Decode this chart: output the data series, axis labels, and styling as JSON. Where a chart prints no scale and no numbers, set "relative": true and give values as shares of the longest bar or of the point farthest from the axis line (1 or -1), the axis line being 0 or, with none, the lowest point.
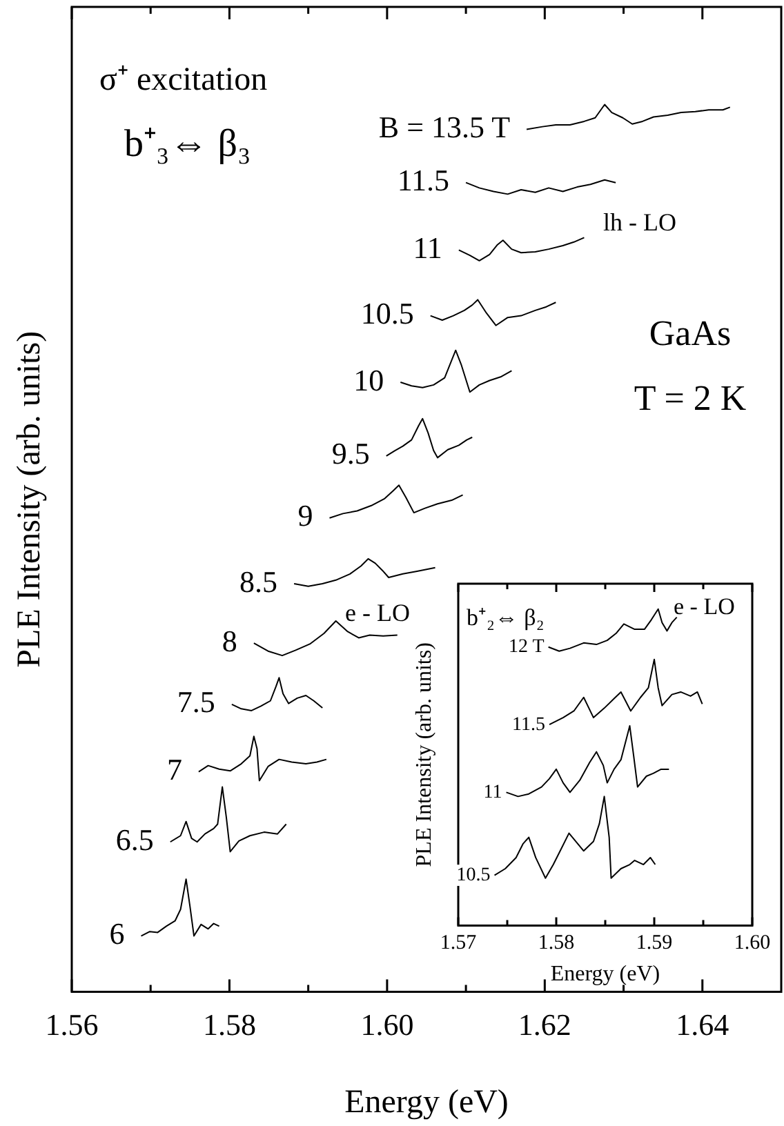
{
  "chart_data": [
    {
      "type": "line",
      "relative": true,
      "xlabel": "Energy (eV)",
      "ylabel": "PLE Intensity (arb. units)",
      "xlim": [
        1.56,
        1.65
      ],
      "xticks": [
        1.56,
        {
          "value": 1.57,
          "label": null
        },
        1.58,
        {
          "value": 1.59,
          "label": null
        },
        {
          "value": 1.6,
          "label": "1.60"
        },
        {
          "value": 1.61,
          "label": null
        },
        1.62,
        {
          "value": 1.63,
          "label": null
        },
        1.64
      ],
      "annotations": [
        "σ⁺ excitation",
        "b⁺₃⇔ β₃",
        "GaAs",
        "T = 2 K",
        "lh - LO",
        "e - LO"
      ],
      "series": [
        {
          "name": "B = 13.5 T",
          "color": "#000000",
          "x": [
            1.6177,
            1.6197,
            1.6214,
            1.6232,
            1.625,
            1.6264,
            1.6276,
            1.6285,
            1.6299,
            1.6311,
            1.6324,
            1.6338,
            1.6356,
            1.6373,
            1.6391,
            1.6408,
            1.6426,
            1.6435
          ],
          "values": [
            0.972,
            0.975,
            0.977,
            0.977,
            0.981,
            0.985,
            1.0,
            0.991,
            0.985,
            0.978,
            0.981,
            0.986,
            0.988,
            0.991,
            0.992,
            0.994,
            0.994,
            0.997
          ]
        },
        {
          "name": "11.5",
          "color": "#000000",
          "x": [
            1.61,
            1.6117,
            1.6135,
            1.6153,
            1.617,
            1.6188,
            1.6205,
            1.6223,
            1.6241,
            1.6258,
            1.6276,
            1.629
          ],
          "values": [
            0.912,
            0.906,
            0.902,
            0.899,
            0.904,
            0.901,
            0.906,
            0.902,
            0.907,
            0.91,
            0.915,
            0.912
          ]
        },
        {
          "name": "11",
          "color": "#000000",
          "x": [
            1.6091,
            1.6105,
            1.6117,
            1.613,
            1.614,
            1.6147,
            1.6158,
            1.617,
            1.6188,
            1.6205,
            1.6223,
            1.6237,
            1.625
          ],
          "values": [
            0.836,
            0.83,
            0.824,
            0.831,
            0.842,
            0.847,
            0.837,
            0.833,
            0.834,
            0.837,
            0.841,
            0.845,
            0.85
          ]
        },
        {
          "name": "10.5",
          "color": "#000000",
          "x": [
            1.6055,
            1.607,
            1.6084,
            1.6098,
            1.6108,
            1.6115,
            1.6126,
            1.6138,
            1.6153,
            1.617,
            1.6188,
            1.6202,
            1.6214
          ],
          "values": [
            0.762,
            0.757,
            0.762,
            0.768,
            0.774,
            0.78,
            0.765,
            0.751,
            0.76,
            0.762,
            0.768,
            0.772,
            0.777
          ]
        },
        {
          "name": "10",
          "color": "#000000",
          "x": [
            1.6017,
            1.6031,
            1.6045,
            1.6059,
            1.6073,
            1.6082,
            1.6087,
            1.6094,
            1.6105,
            1.6117,
            1.613,
            1.6144,
            1.6158
          ],
          "values": [
            0.687,
            0.683,
            0.681,
            0.684,
            0.692,
            0.712,
            0.723,
            0.707,
            0.676,
            0.684,
            0.689,
            0.693,
            0.7
          ]
        },
        {
          "name": "9.5",
          "color": "#000000",
          "x": [
            1.5999,
            1.601,
            1.602,
            1.6031,
            1.604,
            1.6045,
            1.6052,
            1.6059,
            1.6064,
            1.6077,
            1.6091,
            1.6101,
            1.6108
          ],
          "values": [
            0.604,
            0.61,
            0.615,
            0.622,
            0.638,
            0.646,
            0.63,
            0.61,
            0.602,
            0.611,
            0.616,
            0.622,
            0.625
          ]
        },
        {
          "name": "9",
          "color": "#000000",
          "x": [
            1.5927,
            1.5944,
            1.5962,
            1.598,
            1.5997,
            1.6008,
            1.6015,
            1.6024,
            1.6034,
            1.6048,
            1.6064,
            1.6082,
            1.6096
          ],
          "values": [
            0.534,
            0.539,
            0.542,
            0.548,
            0.556,
            0.565,
            0.571,
            0.557,
            0.54,
            0.545,
            0.55,
            0.554,
            0.56
          ]
        },
        {
          "name": "8.5",
          "color": "#000000",
          "x": [
            1.5882,
            1.59,
            1.5918,
            1.5935,
            1.5953,
            1.5967,
            1.5976,
            1.5985,
            1.5994,
            1.6002,
            1.602,
            1.6038,
            1.6061
          ],
          "values": [
            0.46,
            0.457,
            0.46,
            0.464,
            0.471,
            0.48,
            0.488,
            0.483,
            0.475,
            0.467,
            0.471,
            0.474,
            0.478
          ]
        },
        {
          "name": "8",
          "color": "#000000",
          "x": [
            1.5831,
            1.5849,
            1.5867,
            1.5884,
            1.5902,
            1.592,
            1.5935,
            1.595,
            1.5964,
            1.5978,
            1.5995,
            1.6013
          ],
          "values": [
            0.393,
            0.384,
            0.379,
            0.385,
            0.392,
            0.404,
            0.418,
            0.406,
            0.399,
            0.402,
            0.401,
            0.402
          ]
        },
        {
          "name": "7.5",
          "color": "#000000",
          "x": [
            1.5803,
            1.5815,
            1.5828,
            1.584,
            1.5852,
            1.5859,
            1.5863,
            1.5868,
            1.5875,
            1.5886,
            1.5897,
            1.5907,
            1.5918
          ],
          "values": [
            0.324,
            0.319,
            0.317,
            0.322,
            0.328,
            0.344,
            0.354,
            0.336,
            0.325,
            0.331,
            0.334,
            0.328,
            0.32
          ]
        },
        {
          "name": "7",
          "color": "#000000",
          "x": [
            1.5761,
            1.5773,
            1.5787,
            1.5801,
            1.5815,
            1.5826,
            1.5831,
            1.5835,
            1.5838,
            1.5849,
            1.5863,
            1.5879,
            1.5897,
            1.5911,
            1.5923
          ],
          "values": [
            0.248,
            0.255,
            0.251,
            0.249,
            0.257,
            0.266,
            0.288,
            0.274,
            0.238,
            0.254,
            0.262,
            0.259,
            0.257,
            0.259,
            0.262
          ]
        },
        {
          "name": "6.5",
          "color": "#000000",
          "x": [
            1.5725,
            1.5738,
            1.5745,
            1.5752,
            1.5759,
            1.5769,
            1.578,
            1.5785,
            1.5791,
            1.5796,
            1.5801,
            1.5812,
            1.5826,
            1.5844,
            1.5861,
            1.5872
          ],
          "values": [
            0.169,
            0.176,
            0.192,
            0.173,
            0.169,
            0.178,
            0.184,
            0.189,
            0.231,
            0.197,
            0.158,
            0.17,
            0.176,
            0.18,
            0.178,
            0.189
          ]
        },
        {
          "name": "6",
          "color": "#000000",
          "x": [
            1.5688,
            1.5699,
            1.5709,
            1.572,
            1.5731,
            1.5738,
            1.5745,
            1.575,
            1.5755,
            1.5764,
            1.5773,
            1.578,
            1.5787
          ],
          "values": [
            0.063,
            0.068,
            0.067,
            0.074,
            0.08,
            0.093,
            0.127,
            0.096,
            0.063,
            0.076,
            0.071,
            0.077,
            0.074
          ]
        }
      ]
    },
    {
      "type": "line",
      "relative": true,
      "xlabel": "Energy (eV)",
      "ylabel": "PLE Intensity (arb. units)",
      "xlim": [
        1.57,
        1.6
      ],
      "xticks": [
        1.57,
        {
          "value": 1.575,
          "label": null
        },
        1.58,
        {
          "value": 1.585,
          "label": null
        },
        1.59,
        {
          "value": 1.595,
          "label": null
        },
        {
          "value": 1.6,
          "label": "1.60"
        }
      ],
      "annotations": [
        "b⁺₂⇔ β₂",
        "e - LO"
      ],
      "series": [
        {
          "name": "12 T",
          "color": "#000000",
          "x": [
            1.5792,
            1.5803,
            1.5814,
            1.5828,
            1.5841,
            1.5852,
            1.5861,
            1.5869,
            1.588,
            1.589,
            1.5897,
            1.5904,
            1.5908,
            1.5913,
            1.5918,
            1.5923
          ],
          "values": [
            0.88,
            0.867,
            0.876,
            0.893,
            0.888,
            0.901,
            0.923,
            0.953,
            0.936,
            0.936,
            0.966,
            1.0,
            0.957,
            0.931,
            0.957,
            0.974
          ]
        },
        {
          "name": "11.5",
          "color": "#000000",
          "x": [
            1.5793,
            1.5807,
            1.5818,
            1.5828,
            1.5838,
            1.5849,
            1.5859,
            1.5866,
            1.5876,
            1.5886,
            1.5894,
            1.59,
            1.5904,
            1.5908,
            1.5918,
            1.5927,
            1.5937,
            1.5944,
            1.5949
          ],
          "values": [
            0.635,
            0.657,
            0.678,
            0.721,
            0.657,
            0.687,
            0.717,
            0.738,
            0.678,
            0.721,
            0.751,
            0.841,
            0.751,
            0.695,
            0.73,
            0.738,
            0.725,
            0.738,
            0.7
          ]
        },
        {
          "name": "11",
          "color": "#000000",
          "x": [
            1.5749,
            1.5761,
            1.5772,
            1.5785,
            1.5793,
            1.58,
            1.5807,
            1.5814,
            1.5824,
            1.5834,
            1.5841,
            1.5848,
            1.5852,
            1.5859,
            1.5866,
            1.5875,
            1.5879,
            1.5883,
            1.5892,
            1.5899,
            1.5907,
            1.5915
          ],
          "values": [
            0.421,
            0.408,
            0.416,
            0.438,
            0.464,
            0.494,
            0.451,
            0.421,
            0.459,
            0.515,
            0.549,
            0.506,
            0.451,
            0.494,
            0.524,
            0.631,
            0.536,
            0.438,
            0.472,
            0.481,
            0.494,
            0.494
          ]
        },
        {
          "name": "10.5",
          "color": "#000000",
          "x": [
            1.5737,
            1.5748,
            1.5759,
            1.5766,
            1.5772,
            1.5779,
            1.5789,
            1.5797,
            1.5804,
            1.5813,
            1.582,
            1.5828,
            1.5838,
            1.5844,
            1.5849,
            1.5854,
            1.5856,
            1.5866,
            1.5875,
            1.588,
            1.5889,
            1.5896,
            1.5901
          ],
          "values": [
            0.159,
            0.18,
            0.215,
            0.258,
            0.279,
            0.215,
            0.15,
            0.193,
            0.236,
            0.292,
            0.266,
            0.236,
            0.266,
            0.322,
            0.408,
            0.279,
            0.15,
            0.18,
            0.193,
            0.206,
            0.193,
            0.215,
            0.193
          ]
        }
      ]
    }
  ]
}
